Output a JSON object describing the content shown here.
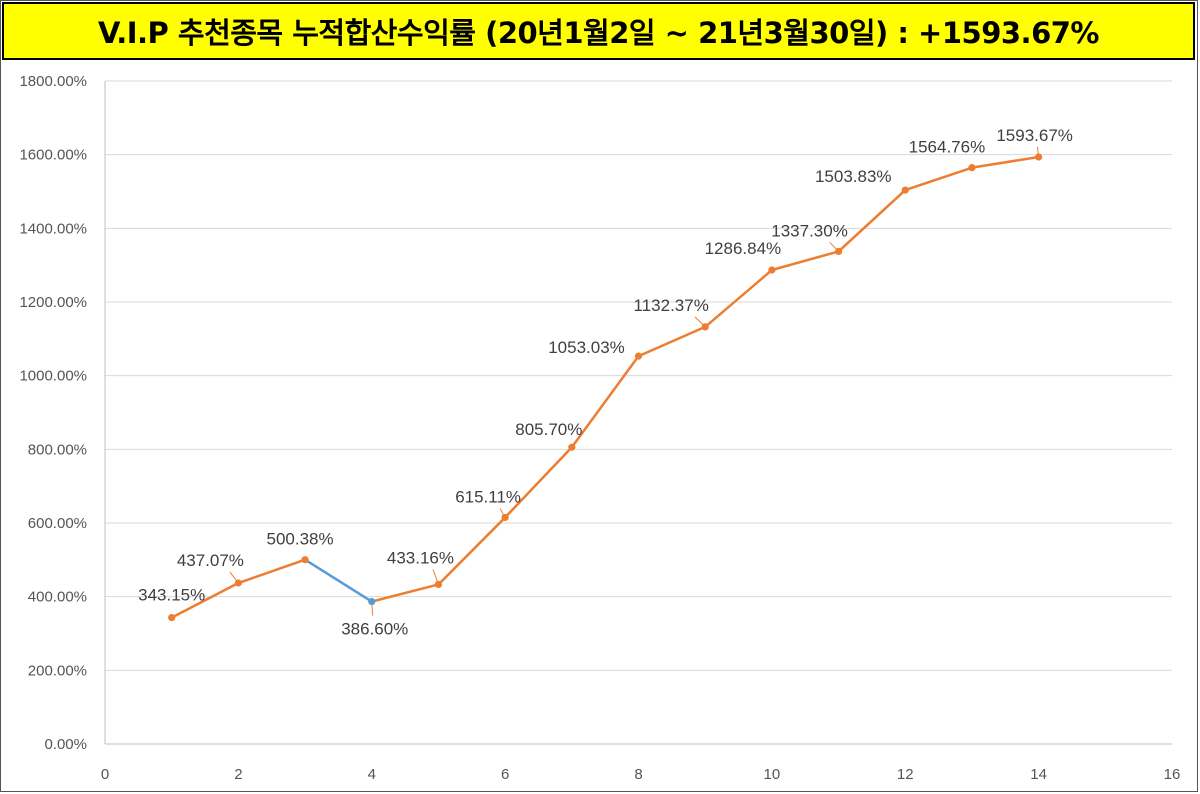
{
  "title": "V.I.P 추천종목 누적합산수익률 (20년1월2일  ~ 21년3월30일) : +1593.67%",
  "colors": {
    "title_bg": "#ffff00",
    "series_line": "#ed7d31",
    "down_segment": "#5b9bd5",
    "grid": "#d9d9d9"
  },
  "chart_data": {
    "type": "line",
    "title": "V.I.P 추천종목 누적합산수익률 (20년1월2일  ~ 21년3월30일) : +1593.67%",
    "xlabel": "",
    "ylabel": "",
    "xlim": [
      0,
      16
    ],
    "ylim": [
      0,
      1800
    ],
    "x_ticks": [
      "0",
      "2",
      "4",
      "6",
      "8",
      "10",
      "12",
      "14",
      "16"
    ],
    "y_ticks": [
      "0.00%",
      "200.00%",
      "400.00%",
      "600.00%",
      "800.00%",
      "1000.00%",
      "1200.00%",
      "1400.00%",
      "1600.00%",
      "1800.00%"
    ],
    "grid": true,
    "series": [
      {
        "name": "누적합산수익률",
        "x": [
          1,
          2,
          3,
          4,
          5,
          6,
          7,
          8,
          9,
          10,
          11,
          12,
          13,
          14
        ],
        "values": [
          343.15,
          437.07,
          500.38,
          386.6,
          433.16,
          615.11,
          805.7,
          1053.03,
          1132.37,
          1286.84,
          1337.3,
          1503.83,
          1564.76,
          1593.67
        ],
        "labels": [
          "343.15%",
          "437.07%",
          "500.38%",
          "386.60%",
          "433.16%",
          "615.11%",
          "805.70%",
          "1053.03%",
          "1132.37%",
          "1286.84%",
          "1337.30%",
          "1503.83%",
          "1564.76%",
          "1593.67%"
        ]
      }
    ],
    "decrease_segment": [
      3,
      4
    ]
  }
}
